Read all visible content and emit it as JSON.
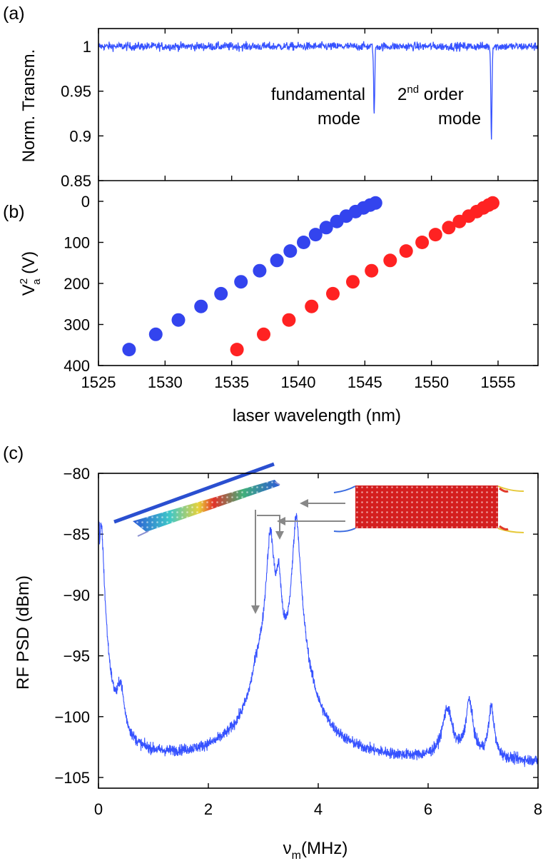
{
  "chart_data": [
    {
      "panel_label": "(a)",
      "type": "line",
      "ylabel": "Norm. Transm.",
      "xlim": [
        1525,
        1558
      ],
      "ylim": [
        0.85,
        1.02
      ],
      "yticks": [
        "0.85",
        "0.9",
        "0.95",
        "1"
      ],
      "ytick_values": [
        0.85,
        0.9,
        0.95,
        1
      ],
      "color": "#3652ff",
      "baseline": 1.0,
      "noise_amplitude": 0.005,
      "dips": [
        {
          "x": 1545.7,
          "min": 0.925
        },
        {
          "x": 1554.5,
          "min": 0.896
        }
      ],
      "annotations": [
        {
          "lines": [
            "fundamental",
            "mode"
          ]
        },
        {
          "base": "2",
          "sup": "nd",
          "rest": " order",
          "line2": "mode"
        }
      ]
    },
    {
      "panel_label": "(b)",
      "type": "scatter",
      "ylabel_main": "V",
      "ylabel_sup": "2",
      "ylabel_sub": "a",
      "ylabel_unit": " (V)",
      "xlabel": "laser wavelength (nm)",
      "xlim": [
        1525,
        1558
      ],
      "ylim": [
        0,
        400
      ],
      "y_inverted": true,
      "xticks": [
        "1525",
        "1530",
        "1535",
        "1540",
        "1545",
        "1550",
        "1555"
      ],
      "xtick_values": [
        1525,
        1530,
        1535,
        1540,
        1545,
        1550,
        1555
      ],
      "yticks": [
        "0",
        "100",
        "200",
        "300",
        "400"
      ],
      "ytick_values": [
        0,
        100,
        200,
        300,
        400
      ],
      "series": [
        {
          "name": "fundamental mode",
          "color": "#3344ee",
          "x": [
            1527.3,
            1529.3,
            1531.0,
            1532.7,
            1534.2,
            1535.7,
            1537.1,
            1538.4,
            1539.4,
            1540.4,
            1541.3,
            1542.1,
            1542.9,
            1543.6,
            1544.3,
            1544.9,
            1545.4,
            1545.8
          ],
          "y": [
            361,
            324,
            289,
            256,
            225,
            196,
            169,
            144,
            121,
            100,
            81,
            64,
            49,
            36,
            25,
            16,
            9,
            4
          ]
        },
        {
          "name": "2nd order mode",
          "color": "#ff2222",
          "x": [
            1535.4,
            1537.4,
            1539.3,
            1541.0,
            1542.6,
            1544.1,
            1545.5,
            1546.9,
            1548.1,
            1549.3,
            1550.3,
            1551.3,
            1552.1,
            1552.8,
            1553.4,
            1553.9,
            1554.3,
            1554.6
          ],
          "y": [
            361,
            324,
            289,
            256,
            225,
            196,
            169,
            144,
            121,
            100,
            81,
            64,
            49,
            36,
            25,
            16,
            9,
            4
          ]
        }
      ]
    },
    {
      "panel_label": "(c)",
      "type": "line",
      "ylabel": "RF PSD (dBm)",
      "xlabel_main": "ν",
      "xlabel_sub": "m",
      "xlabel_unit": "(MHz)",
      "xlim": [
        0,
        8
      ],
      "ylim": [
        -106,
        -80
      ],
      "xticks": [
        "0",
        "2",
        "4",
        "6",
        "8"
      ],
      "xtick_values": [
        0,
        2,
        4,
        6,
        8
      ],
      "yticks": [
        "−105",
        "−100",
        "−95",
        "−90",
        "−85",
        "−80"
      ],
      "ytick_values": [
        -105,
        -100,
        -95,
        -90,
        -85,
        -80
      ],
      "color": "#3652ff",
      "floor": -103.8,
      "noise_amplitude": 0.6,
      "peaks": [
        {
          "x": 0.05,
          "height": 19.5,
          "width": 0.04
        },
        {
          "x": 0.4,
          "height": 4.0,
          "width": 0.06
        },
        {
          "x": 2.9,
          "height": 3.5,
          "width": 0.1
        },
        {
          "x": 3.13,
          "height": 18.8,
          "width": 0.06
        },
        {
          "x": 3.28,
          "height": 14.7,
          "width": 0.045
        },
        {
          "x": 3.6,
          "height": 20.2,
          "width": 0.055
        },
        {
          "x": 6.35,
          "height": 2.3,
          "width": 0.09
        },
        {
          "x": 6.75,
          "height": 3.4,
          "width": 0.06
        },
        {
          "x": 7.15,
          "height": 2.6,
          "width": 0.05
        }
      ],
      "insets": [
        "beam-mode-simulation",
        "membrane-mode-simulation"
      ]
    }
  ]
}
